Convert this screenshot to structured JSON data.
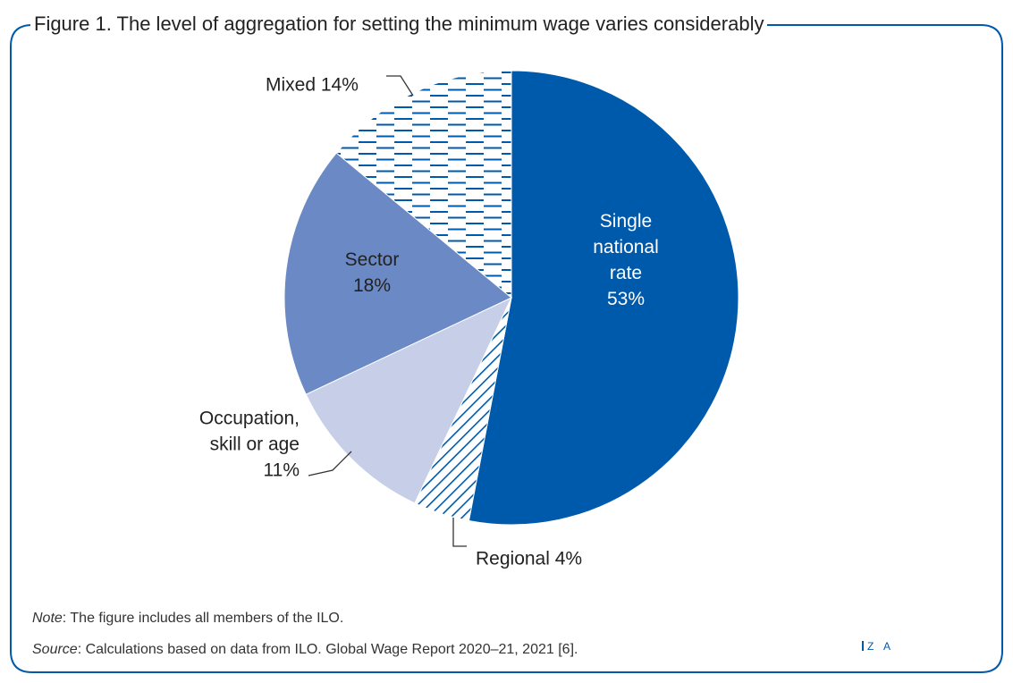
{
  "figure": {
    "title": "Figure 1. The level of aggregation for setting the minimum wage varies considerably",
    "note_label": "Note",
    "note_text": ": The figure includes all members of the ILO.",
    "source_label": "Source",
    "source_text": ": Calculations based on data from ILO. Global Wage Report 2020–21, 2021 [6].",
    "logo_text": "Z A"
  },
  "colors": {
    "dark_blue": "#005aab",
    "medium_blue": "#6b89c5",
    "light_blue": "#c7cfe8",
    "frame": "#0059a9"
  },
  "chart_data": {
    "type": "pie",
    "start": "12 o'clock, clockwise",
    "slices": [
      {
        "label": "Single national rate",
        "value": 53,
        "label_lines": [
          "Single",
          "national",
          "rate",
          "53%"
        ],
        "fill": "dark_blue",
        "pattern": "solid",
        "label_color": "#ffffff"
      },
      {
        "label": "Regional",
        "value": 4,
        "label_lines": [
          "Regional 4%"
        ],
        "fill": "dark_blue",
        "pattern": "diagonal-hatch",
        "label_color": "#222222"
      },
      {
        "label": "Occupation, skill or age",
        "value": 11,
        "label_lines": [
          "Occupation,",
          "skill or age",
          "11%"
        ],
        "fill": "light_blue",
        "pattern": "solid",
        "label_color": "#222222"
      },
      {
        "label": "Sector",
        "value": 18,
        "label_lines": [
          "Sector",
          "18%"
        ],
        "fill": "medium_blue",
        "pattern": "solid",
        "label_color": "#222222"
      },
      {
        "label": "Mixed",
        "value": 14,
        "label_lines": [
          "Mixed 14%"
        ],
        "fill": "dark_blue",
        "pattern": "dashed-horizontal",
        "label_color": "#222222"
      }
    ]
  }
}
